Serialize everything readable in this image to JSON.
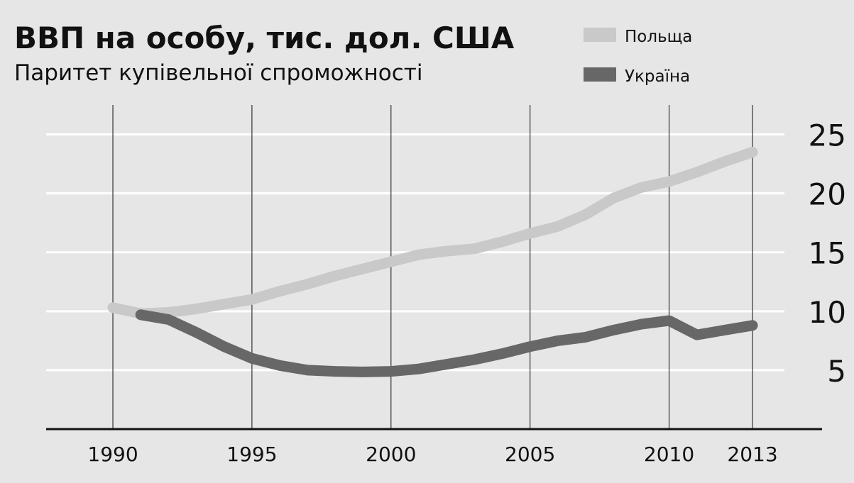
{
  "chart_data": {
    "type": "line",
    "title": "ВВП на особу, тис. дол. США",
    "subtitle": "Паритет купівельної спроможності",
    "xlim": [
      1987.6,
      2015.5
    ],
    "xticks": [
      1990,
      1995,
      2000,
      2005,
      2010,
      2013
    ],
    "ylim": [
      0,
      27.5
    ],
    "yticks": [
      5,
      10,
      15,
      20,
      25
    ],
    "grid": true,
    "legend": "top-right",
    "series": [
      {
        "name": "Польща",
        "color": "#c9c9c9",
        "x": [
          1990,
          1991,
          1992,
          1993,
          1994,
          1995,
          1996,
          1997,
          1998,
          1999,
          2000,
          2001,
          2002,
          2003,
          2004,
          2005,
          2006,
          2007,
          2008,
          2009,
          2010,
          2011,
          2012,
          2013
        ],
        "values": [
          10.3,
          9.8,
          9.9,
          10.2,
          10.6,
          11.0,
          11.7,
          12.3,
          13.0,
          13.6,
          14.2,
          14.8,
          15.1,
          15.3,
          15.9,
          16.6,
          17.2,
          18.2,
          19.6,
          20.5,
          21.0,
          21.8,
          22.7,
          23.5
        ]
      },
      {
        "name": "Україна",
        "color": "#676767",
        "x": [
          1991,
          1992,
          1993,
          1994,
          1995,
          1996,
          1997,
          1998,
          1999,
          2000,
          2001,
          2002,
          2003,
          2004,
          2005,
          2006,
          2007,
          2008,
          2009,
          2010,
          2011,
          2012,
          2013
        ],
        "values": [
          9.7,
          9.3,
          8.2,
          7.0,
          6.0,
          5.4,
          5.0,
          4.9,
          4.85,
          4.9,
          5.1,
          5.5,
          5.9,
          6.4,
          7.0,
          7.5,
          7.8,
          8.4,
          8.9,
          9.2,
          8.0,
          8.4,
          8.8
        ]
      }
    ]
  }
}
